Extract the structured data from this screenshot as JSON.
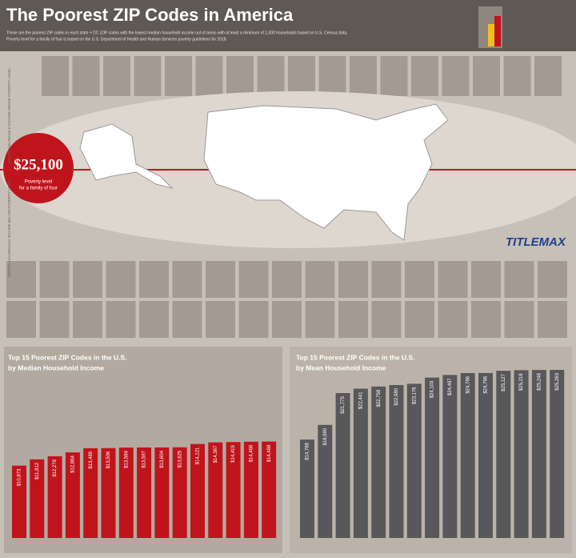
{
  "header": {
    "title": "The Poorest ZIP Codes in America",
    "subtitle": [
      "These are the poorest ZIP codes in each state + DC (ZIP codes with the lowest median household income out of areas with at least a minimum of 1,000 households based on U.S. Census data.",
      "Poverty level for a family of four is based on the U.S. Department of Health and Human Services poverty guidelines for 2018."
    ]
  },
  "poverty": {
    "value": "$25,100",
    "label": [
      "Poverty level",
      "for a family of four"
    ]
  },
  "side_labels": {
    "above": "MEDIAN HOUSEHOLD INCOME ABOVE POVERTY LEVEL",
    "below": "MEDIAN HOUSEHOLD INCOME BELOW POVERTY LEVEL"
  },
  "brand": "TITLEMAX",
  "chart_data": [
    {
      "type": "bar",
      "title": "Top 15 Poorest ZIP Codes in the U.S.",
      "subtitle": "by Median Household Income",
      "color": "#c0141c",
      "values": [
        10873,
        11812,
        12278,
        12864,
        13489,
        13506,
        13584,
        13597,
        13604,
        13625,
        14121,
        14367,
        14419,
        14468,
        14488
      ],
      "value_labels": [
        "$10,873",
        "$11,812",
        "$12,278",
        "$12,864",
        "$13,489",
        "$13,506",
        "$13,584",
        "$13,597",
        "$13,604",
        "$13,625",
        "$14,121",
        "$14,367",
        "$14,419",
        "$14,468",
        "$14,488"
      ]
    },
    {
      "type": "bar",
      "title": "Top 15 Poorest ZIP Codes in the U.S.",
      "subtitle": "by Mean Household Income",
      "color": "#58585a",
      "values": [
        14788,
        16990,
        21775,
        22441,
        22758,
        22980,
        23176,
        24103,
        24497,
        24786,
        24796,
        25127,
        25218,
        25248,
        25263
      ],
      "value_labels": [
        "$14,788",
        "$16,990",
        "$21,775",
        "$22,441",
        "$22,758",
        "$22,980",
        "$23,176",
        "$24,103",
        "$24,497",
        "$24,786",
        "$24,796",
        "$25,127",
        "$25,218",
        "$25,248",
        "$25,263"
      ]
    }
  ]
}
